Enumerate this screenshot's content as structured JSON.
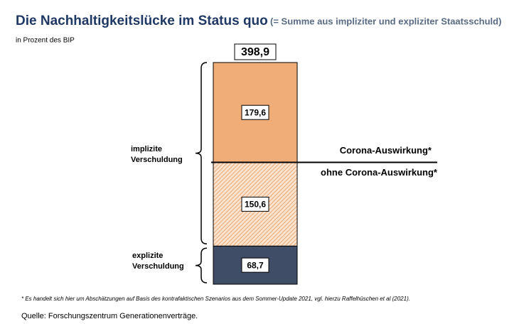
{
  "chart_data": {
    "type": "bar",
    "title": "Die Nachhaltigkeitslücke im Status quo",
    "subtitle": "(= Summe aus impliziter und expliziter Staatsschuld)",
    "unit_label": "in Prozent des BIP",
    "series": [
      {
        "name": "explizite Verschuldung",
        "color": "#3f4d66",
        "hatch": false,
        "values": [
          68.7
        ],
        "value_labels": [
          "68,7"
        ]
      },
      {
        "name": "ohne Corona-Auswirkung*",
        "color": "#f0ad77",
        "hatch": true,
        "values": [
          150.6
        ],
        "value_labels": [
          "150,6"
        ]
      },
      {
        "name": "Corona-Auswirkung*",
        "color": "#f0ad77",
        "hatch": false,
        "values": [
          179.6
        ],
        "value_labels": [
          "179,6"
        ]
      }
    ],
    "total": {
      "value": 398.9,
      "label": "398,9"
    },
    "bracket_label": "implizite Verschuldung",
    "footnote": "* Es handelt sich hier um Abschätzungen auf Basis des kontrafaktischen Szenarios aus dem Sommer-Update 2021, vgl. hierzu Raffelhüschen et al (2021).",
    "source": "Quelle: Forschungszentrum Generationenverträge."
  }
}
